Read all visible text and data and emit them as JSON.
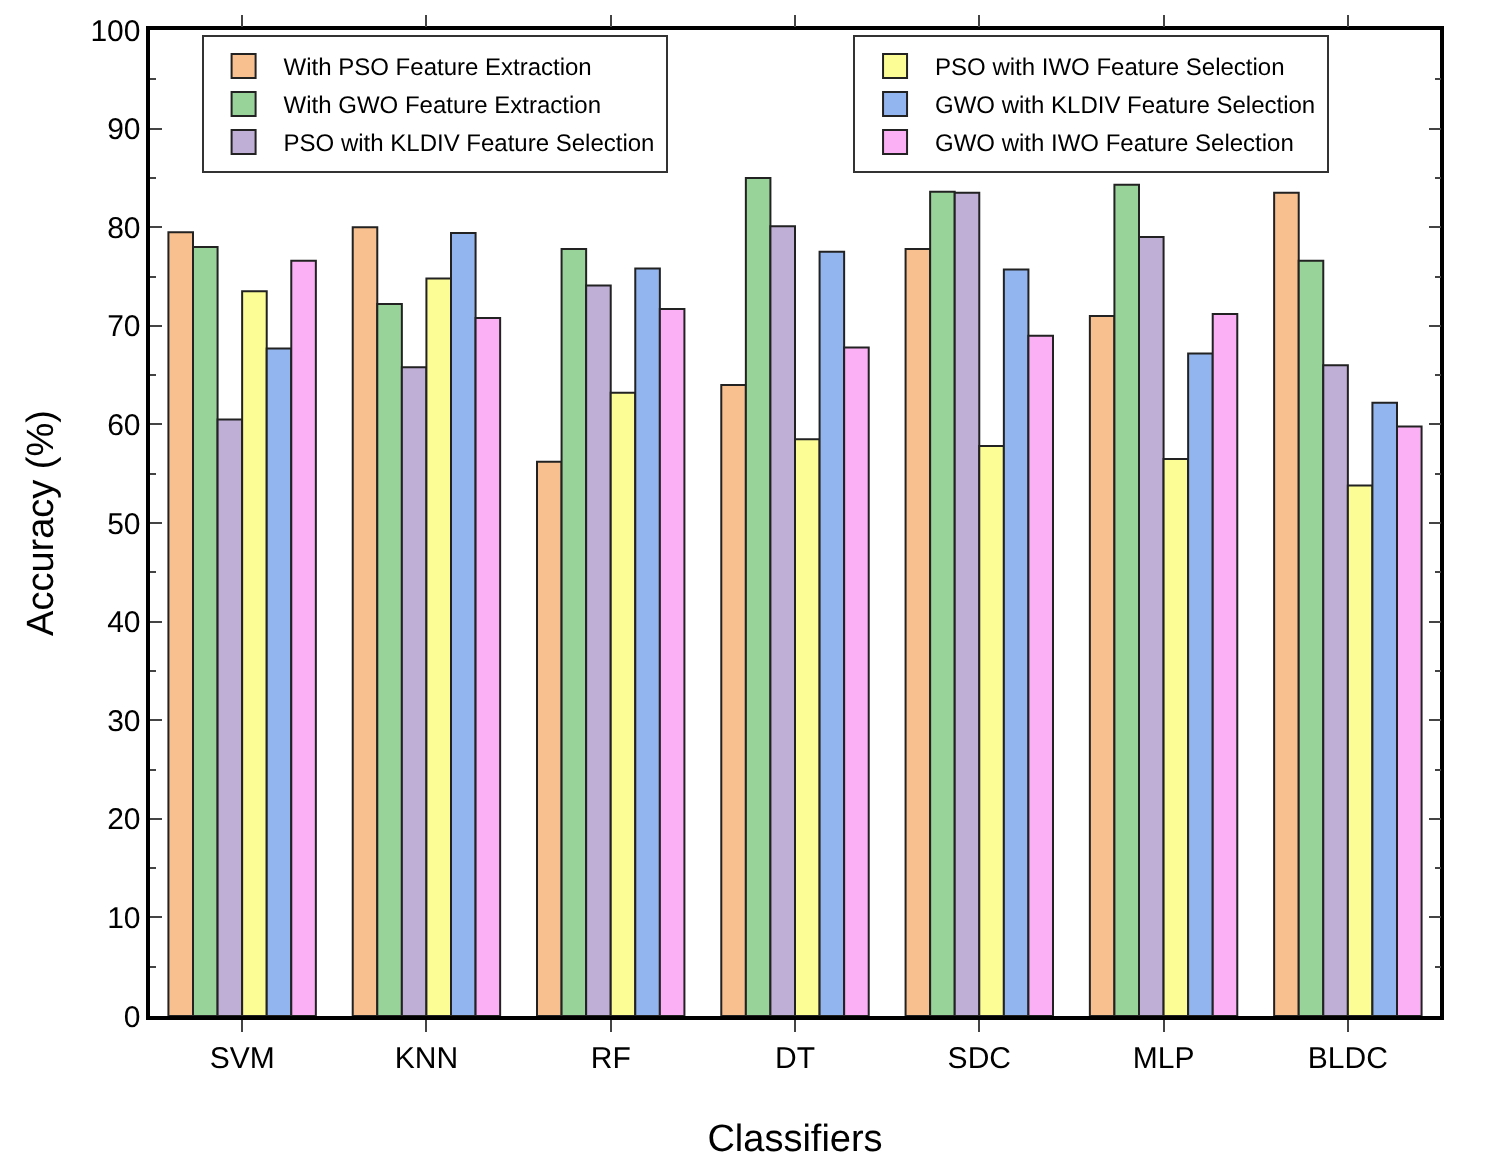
{
  "chart_data": {
    "type": "bar",
    "xlabel": "Classifiers",
    "ylabel": "Accuracy (%)",
    "categories": [
      "SVM",
      "KNN",
      "RF",
      "DT",
      "SDC",
      "MLP",
      "BLDC"
    ],
    "series": [
      {
        "name": "With PSO Feature Extraction",
        "color": "#f9c08f",
        "values": [
          79.5,
          80,
          56.2,
          64,
          77.8,
          71,
          83.5
        ]
      },
      {
        "name": "With GWO Feature Extraction",
        "color": "#98d39a",
        "values": [
          78,
          72.2,
          77.8,
          85,
          83.6,
          84.3,
          76.6
        ]
      },
      {
        "name": "PSO with KLDIV Feature Selection",
        "color": "#bfaed6",
        "values": [
          60.5,
          65.8,
          74.1,
          80.1,
          83.5,
          79,
          66
        ]
      },
      {
        "name": "PSO with IWO Feature Selection",
        "color": "#fdfd96",
        "values": [
          73.5,
          74.8,
          63.2,
          58.5,
          57.8,
          56.5,
          53.8
        ]
      },
      {
        "name": "GWO with KLDIV Feature Selection",
        "color": "#93b5ef",
        "values": [
          67.7,
          79.4,
          75.8,
          77.5,
          75.7,
          67.2,
          62.2
        ]
      },
      {
        "name": "GWO with IWO Feature Selection",
        "color": "#fbb0f5",
        "values": [
          76.6,
          70.8,
          71.7,
          67.8,
          69,
          71.2,
          59.8
        ]
      }
    ],
    "ylim": [
      0,
      100
    ],
    "yticks": [
      0,
      10,
      20,
      30,
      40,
      50,
      60,
      70,
      80,
      90,
      100
    ],
    "grid": false,
    "legend": "top"
  }
}
